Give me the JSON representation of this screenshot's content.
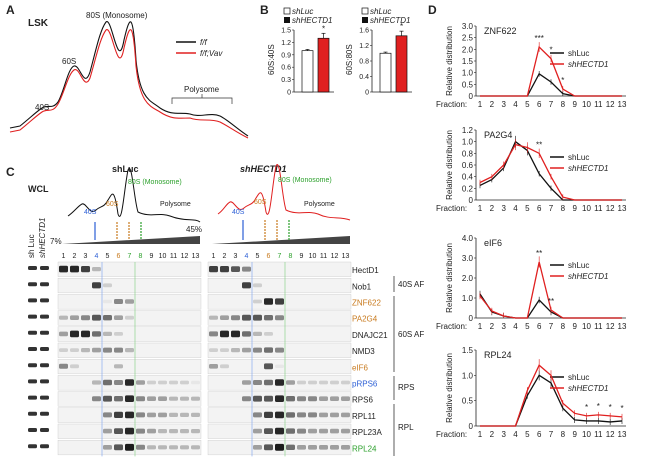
{
  "panels": {
    "A": {
      "letter": "A",
      "tag": "LSK",
      "peaks": {
        "p40": "40S",
        "p60": "60S",
        "p80": "80S (Monosome)",
        "poly": "Polysome"
      },
      "legend": [
        "f/f",
        "f/f;Vav"
      ],
      "colors": {
        "ff": "#111111",
        "vav": "#e02020"
      }
    },
    "B": {
      "letter": "B",
      "legend": [
        "shLuc",
        "shHECTD1"
      ],
      "chart_data": [
        {
          "type": "bar",
          "ylabel": "60S:40S",
          "categories": [
            "shLuc",
            "shHECTD1"
          ],
          "values": [
            1.0,
            1.3
          ],
          "ylim": [
            0,
            1.5
          ],
          "yticks": [
            "0",
            "0.3",
            "0.6",
            "0.9",
            "1.2",
            "1.5"
          ],
          "sig": "*"
        },
        {
          "type": "bar",
          "ylabel": "60S:80S",
          "categories": [
            "shLuc",
            "shHECTD1"
          ],
          "values": [
            1.0,
            1.45
          ],
          "ylim": [
            0,
            1.6
          ],
          "yticks": [
            "0",
            "0.4",
            "0.8",
            "1.2",
            "1.6"
          ],
          "sig": "*"
        }
      ]
    },
    "C": {
      "letter": "C",
      "wcl": "WCL",
      "lanes_wcl": [
        "sh Luc",
        "shHECTD1"
      ],
      "profiles": [
        {
          "title": "shLuc",
          "p40": "40S",
          "p60": "60S",
          "p80": "80S (Monosome)",
          "poly": "Polysome"
        },
        {
          "title": "shHECTD1",
          "p40": "40S",
          "p60": "60S",
          "p80": "80S (Monosome)",
          "poly": "Polysome"
        }
      ],
      "gradient": [
        "7%",
        "45%"
      ],
      "fractions": [
        "1",
        "2",
        "3",
        "4",
        "5",
        "6",
        "7",
        "8",
        "9",
        "10",
        "11",
        "12",
        "13"
      ],
      "proteins": [
        {
          "name": "HectD1",
          "color": "#222222"
        },
        {
          "name": "Nob1",
          "color": "#222222"
        },
        {
          "name": "ZNF622",
          "color": "#c87a1e"
        },
        {
          "name": "PA2G4",
          "color": "#c87a1e"
        },
        {
          "name": "DNAJC21",
          "color": "#222222"
        },
        {
          "name": "NMD3",
          "color": "#222222"
        },
        {
          "name": "eIF6",
          "color": "#c87a1e"
        },
        {
          "name": "pRPS6",
          "color": "#2c5fd6"
        },
        {
          "name": "RPS6",
          "color": "#222222"
        },
        {
          "name": "RPL11",
          "color": "#222222"
        },
        {
          "name": "RPL23A",
          "color": "#222222"
        },
        {
          "name": "RPL24",
          "color": "#2ca02c"
        }
      ],
      "groups": [
        "40S AF",
        "60S AF",
        "RPS",
        "RPL"
      ]
    },
    "D": {
      "letter": "D",
      "ylabel": "Relative distribution",
      "xprefix": "Fraction:",
      "chart_data": [
        {
          "type": "line",
          "title": "ZNF622",
          "x": [
            1,
            2,
            3,
            4,
            5,
            6,
            7,
            8,
            9,
            10,
            11,
            12,
            13
          ],
          "ylim": [
            0,
            3.0
          ],
          "yticks": [
            "0",
            "0.5",
            "1.0",
            "1.5",
            "2.0",
            "2.5",
            "3.0"
          ],
          "series": [
            {
              "name": "shLuc",
              "color": "#111111",
              "values": [
                0,
                0,
                0,
                0,
                0,
                0.95,
                0.6,
                0.1,
                0,
                0,
                0,
                0,
                0
              ]
            },
            {
              "name": "shHECTD1",
              "color": "#e02020",
              "values": [
                0,
                0,
                0,
                0,
                0,
                2.1,
                1.6,
                0.3,
                0,
                0,
                0,
                0,
                0
              ]
            }
          ],
          "sig": [
            {
              "x": 6,
              "label": "***"
            },
            {
              "x": 7,
              "label": "*"
            },
            {
              "x": 8,
              "label": "*"
            }
          ]
        },
        {
          "type": "line",
          "title": "PA2G4",
          "x": [
            1,
            2,
            3,
            4,
            5,
            6,
            7,
            8,
            9,
            10,
            11,
            12,
            13
          ],
          "ylim": [
            0,
            1.2
          ],
          "yticks": [
            "0",
            "0.2",
            "0.4",
            "0.6",
            "0.8",
            "1.0",
            "1.2"
          ],
          "series": [
            {
              "name": "shLuc",
              "color": "#111111",
              "values": [
                0.25,
                0.35,
                0.55,
                1.0,
                0.85,
                0.45,
                0.2,
                0,
                0,
                0,
                0,
                0,
                0
              ]
            },
            {
              "name": "shHECTD1",
              "color": "#e02020",
              "values": [
                0.3,
                0.4,
                0.6,
                0.95,
                0.9,
                0.8,
                0.4,
                0.05,
                0,
                0,
                0,
                0,
                0
              ]
            }
          ],
          "sig": [
            {
              "x": 6,
              "label": "**"
            }
          ]
        },
        {
          "type": "line",
          "title": "eIF6",
          "x": [
            1,
            2,
            3,
            4,
            5,
            6,
            7,
            8,
            9,
            10,
            11,
            12,
            13
          ],
          "ylim": [
            0,
            4.0
          ],
          "yticks": [
            "0",
            "1.0",
            "2.0",
            "3.0",
            "4.0"
          ],
          "series": [
            {
              "name": "shLuc",
              "color": "#111111",
              "values": [
                1.2,
                0.3,
                0.1,
                0,
                0,
                0.9,
                0.3,
                0,
                0,
                0,
                0,
                0,
                0
              ]
            },
            {
              "name": "shHECTD1",
              "color": "#e02020",
              "values": [
                1.1,
                0.35,
                0.1,
                0,
                0,
                2.8,
                0.4,
                0,
                0,
                0,
                0,
                0,
                0
              ]
            }
          ],
          "sig": [
            {
              "x": 6,
              "label": "**"
            },
            {
              "x": 7,
              "label": "**"
            }
          ]
        },
        {
          "type": "line",
          "title": "RPL24",
          "x": [
            1,
            2,
            3,
            4,
            5,
            6,
            7,
            8,
            9,
            10,
            11,
            12,
            13
          ],
          "ylim": [
            0,
            1.5
          ],
          "yticks": [
            "0",
            "0.5",
            "1.0",
            "1.5"
          ],
          "series": [
            {
              "name": "shLuc",
              "color": "#111111",
              "values": [
                0,
                0,
                0,
                0,
                0.6,
                1.0,
                0.85,
                0.35,
                0.12,
                0.1,
                0.1,
                0.08,
                0.1
              ]
            },
            {
              "name": "shHECTD1",
              "color": "#e02020",
              "values": [
                0,
                0,
                0,
                0,
                0.7,
                1.2,
                1.0,
                0.45,
                0.25,
                0.2,
                0.22,
                0.2,
                0.18
              ]
            }
          ],
          "sig": [
            {
              "x": 10,
              "label": "*"
            },
            {
              "x": 11,
              "label": "*"
            },
            {
              "x": 12,
              "label": "*"
            },
            {
              "x": 13,
              "label": "*"
            }
          ]
        }
      ]
    }
  }
}
